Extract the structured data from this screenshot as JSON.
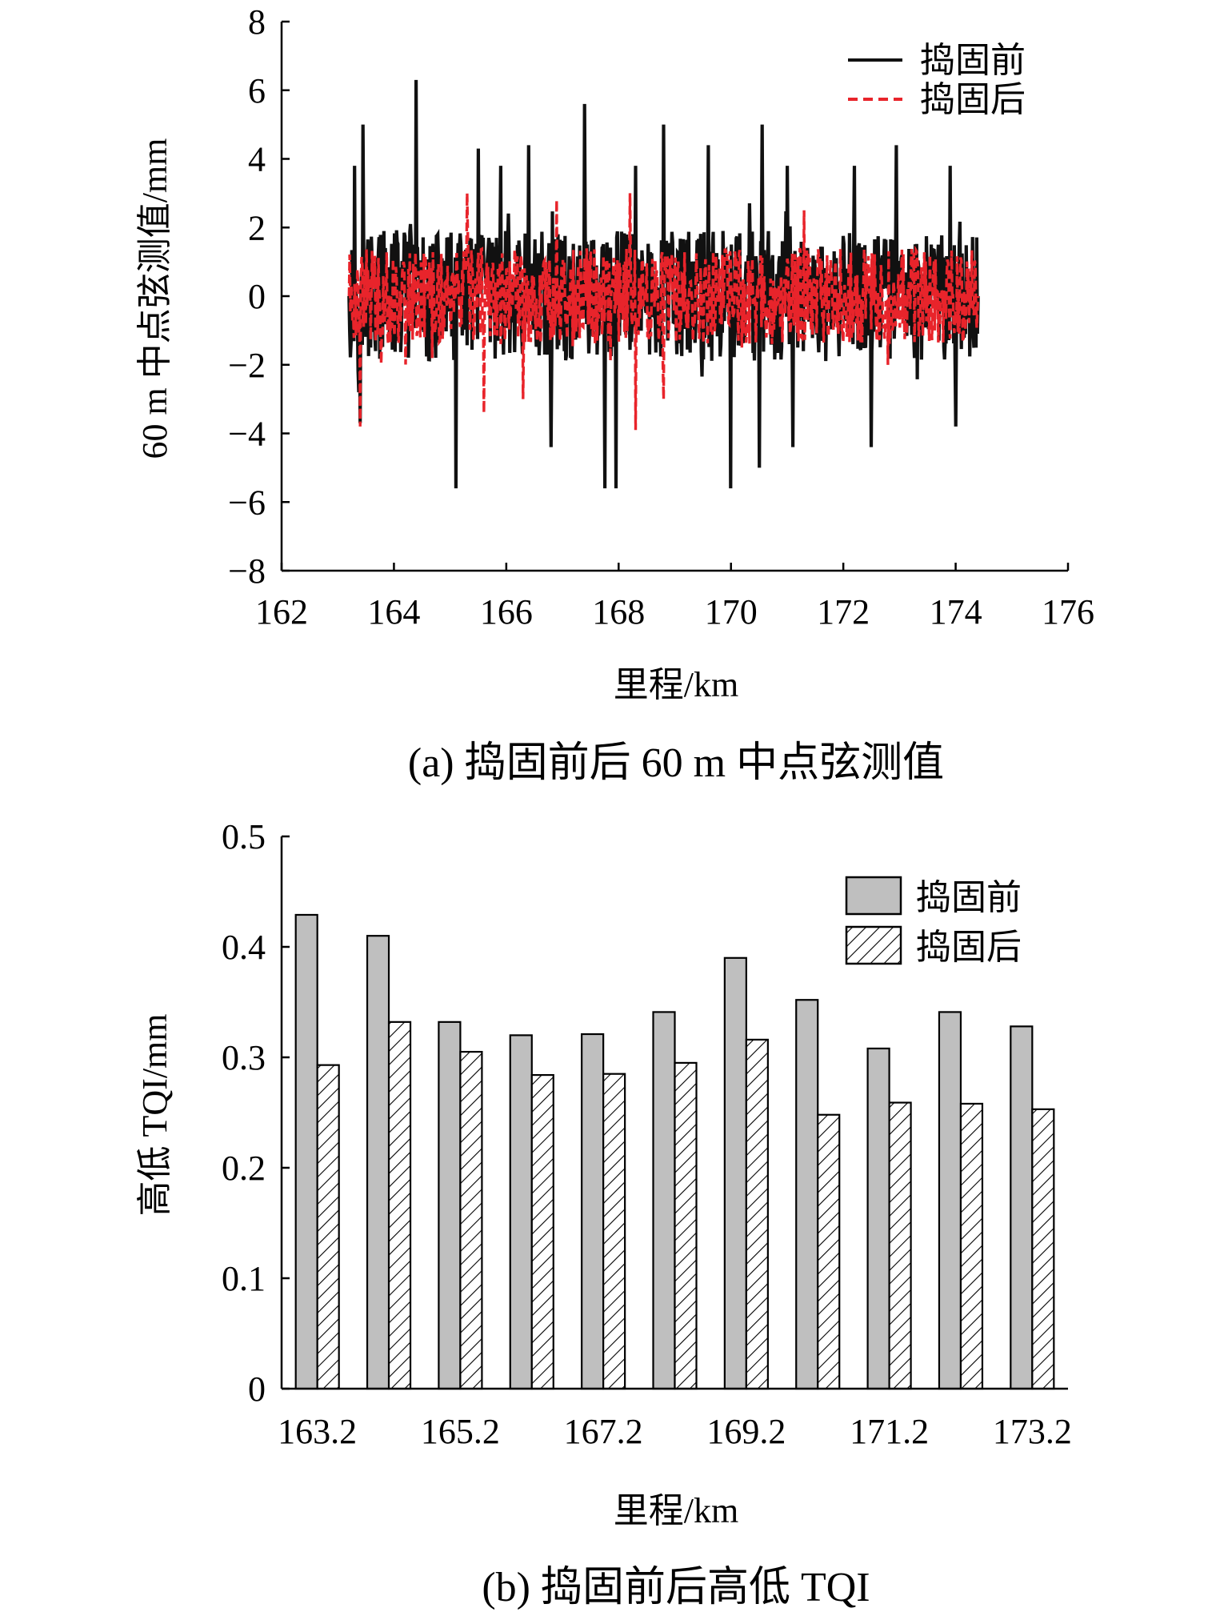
{
  "colors": {
    "before_line": "#111111",
    "after_line": "#e8242b",
    "bar_before_fill": "#bfbfbf",
    "bar_stroke": "#000000"
  },
  "chart_data": [
    {
      "id": "a",
      "type": "line",
      "caption": "(a) 捣固前后 60 m 中点弦测值",
      "xlabel": "里程/km",
      "ylabel": "60 m 中点弦测值/mm",
      "xlim": [
        162,
        176
      ],
      "ylim": [
        -8,
        8
      ],
      "xticks": [
        162,
        164,
        166,
        168,
        170,
        172,
        174,
        176
      ],
      "yticks": [
        8,
        6,
        4,
        2,
        0,
        -2,
        -4,
        -6,
        -8
      ],
      "ytick_labels": [
        "8",
        "6",
        "4",
        "2",
        "0",
        "−2",
        "−4",
        "−6",
        "−8"
      ],
      "x_range": [
        163.2,
        174.4
      ],
      "legend_position": "top-right",
      "grid": false,
      "series": [
        {
          "name": "捣固前",
          "style": "solid",
          "color": "#111111",
          "samples": 900,
          "typical_amplitude": 1.9,
          "peaks": [
            {
              "x": 163.3,
              "y": 3.8
            },
            {
              "x": 163.45,
              "y": 5.0
            },
            {
              "x": 163.4,
              "y": -3.7
            },
            {
              "x": 164.4,
              "y": 6.3
            },
            {
              "x": 165.1,
              "y": -5.6
            },
            {
              "x": 165.5,
              "y": 4.3
            },
            {
              "x": 165.9,
              "y": 3.8
            },
            {
              "x": 166.4,
              "y": 4.4
            },
            {
              "x": 166.8,
              "y": -4.4
            },
            {
              "x": 167.4,
              "y": 5.6
            },
            {
              "x": 167.75,
              "y": -5.6
            },
            {
              "x": 167.95,
              "y": -5.6
            },
            {
              "x": 168.3,
              "y": 3.8
            },
            {
              "x": 168.8,
              "y": 5.0
            },
            {
              "x": 169.6,
              "y": 4.4
            },
            {
              "x": 170.0,
              "y": -5.6
            },
            {
              "x": 170.5,
              "y": -5.0
            },
            {
              "x": 170.55,
              "y": 5.0
            },
            {
              "x": 171.0,
              "y": 3.8
            },
            {
              "x": 171.1,
              "y": -4.4
            },
            {
              "x": 172.2,
              "y": 3.8
            },
            {
              "x": 172.5,
              "y": -4.4
            },
            {
              "x": 172.95,
              "y": 4.4
            },
            {
              "x": 173.9,
              "y": 3.8
            },
            {
              "x": 174.0,
              "y": -3.8
            }
          ]
        },
        {
          "name": "捣固后",
          "style": "dashed",
          "color": "#e8242b",
          "samples": 900,
          "typical_amplitude": 1.4,
          "peaks": [
            {
              "x": 163.4,
              "y": -3.8
            },
            {
              "x": 165.3,
              "y": 3.0
            },
            {
              "x": 165.6,
              "y": -3.4
            },
            {
              "x": 166.3,
              "y": -3.0
            },
            {
              "x": 166.9,
              "y": 2.8
            },
            {
              "x": 168.2,
              "y": 3.0
            },
            {
              "x": 168.3,
              "y": -3.9
            },
            {
              "x": 168.8,
              "y": -3.0
            },
            {
              "x": 171.3,
              "y": 2.5
            }
          ]
        }
      ]
    },
    {
      "id": "b",
      "type": "bar",
      "caption": "(b) 捣固前后高低 TQI",
      "xlabel": "里程/km",
      "ylabel": "高低 TQI/mm",
      "ylim": [
        0,
        0.5
      ],
      "yticks": [
        0,
        0.1,
        0.2,
        0.3,
        0.4,
        0.5
      ],
      "ytick_labels": [
        "0",
        "0.1",
        "0.2",
        "0.3",
        "0.4",
        "0.5"
      ],
      "categories": [
        "163.2",
        "164.2",
        "165.2",
        "166.2",
        "167.2",
        "168.2",
        "169.2",
        "170.2",
        "171.2",
        "172.2",
        "173.2"
      ],
      "xtick_labels": [
        "163.2",
        "",
        "165.2",
        "",
        "167.2",
        "",
        "169.2",
        "",
        "171.2",
        "",
        "173.2"
      ],
      "legend_position": "top-right",
      "grid": false,
      "series": [
        {
          "name": "捣固前",
          "fill": "solid-gray",
          "values": [
            0.429,
            0.41,
            0.332,
            0.32,
            0.321,
            0.341,
            0.39,
            0.352,
            0.308,
            0.341,
            0.328
          ]
        },
        {
          "name": "捣固后",
          "fill": "hatched",
          "values": [
            0.293,
            0.332,
            0.305,
            0.284,
            0.285,
            0.295,
            0.316,
            0.248,
            0.259,
            0.258,
            0.253
          ]
        }
      ]
    }
  ]
}
